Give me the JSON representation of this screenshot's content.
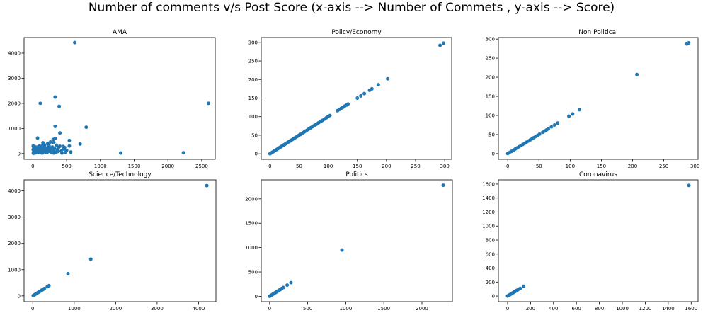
{
  "suptitle": "Number of comments v/s Post Score (x-axis --> Number of Commets , y-axis --> Score)",
  "colors": {
    "point": "#1f77b4",
    "axis": "#000000"
  },
  "chart_data": [
    {
      "type": "scatter",
      "title": "AMA",
      "xlim": [
        -130,
        2700
      ],
      "ylim": [
        -230,
        4620
      ],
      "xticks": [
        0,
        500,
        1000,
        1500,
        2000,
        2500
      ],
      "yticks": [
        0,
        1000,
        2000,
        3000,
        4000
      ],
      "points": [
        [
          620,
          4420
        ],
        [
          2600,
          2000
        ],
        [
          330,
          2250
        ],
        [
          110,
          2000
        ],
        [
          390,
          1880
        ],
        [
          330,
          1080
        ],
        [
          790,
          1050
        ],
        [
          400,
          820
        ],
        [
          70,
          620
        ],
        [
          300,
          560
        ],
        [
          330,
          600
        ],
        [
          700,
          380
        ],
        [
          540,
          300
        ],
        [
          540,
          520
        ],
        [
          450,
          280
        ],
        [
          220,
          400
        ],
        [
          260,
          460
        ],
        [
          310,
          440
        ],
        [
          160,
          320
        ],
        [
          150,
          430
        ],
        [
          1300,
          20
        ],
        [
          2230,
          30
        ],
        [
          560,
          60
        ],
        [
          10,
          10
        ],
        [
          20,
          50
        ],
        [
          30,
          100
        ],
        [
          40,
          150
        ],
        [
          50,
          200
        ],
        [
          60,
          250
        ],
        [
          25,
          280
        ],
        [
          15,
          230
        ],
        [
          35,
          80
        ],
        [
          45,
          30
        ],
        [
          55,
          180
        ],
        [
          65,
          90
        ],
        [
          75,
          260
        ],
        [
          80,
          40
        ],
        [
          90,
          150
        ],
        [
          100,
          210
        ],
        [
          110,
          60
        ],
        [
          120,
          280
        ],
        [
          130,
          120
        ],
        [
          140,
          20
        ],
        [
          160,
          180
        ],
        [
          170,
          90
        ],
        [
          180,
          250
        ],
        [
          200,
          130
        ],
        [
          210,
          40
        ],
        [
          230,
          220
        ],
        [
          250,
          90
        ],
        [
          270,
          160
        ],
        [
          280,
          30
        ],
        [
          300,
          110
        ],
        [
          320,
          210
        ],
        [
          340,
          60
        ],
        [
          360,
          150
        ],
        [
          380,
          240
        ],
        [
          420,
          100
        ],
        [
          460,
          180
        ],
        [
          480,
          50
        ],
        [
          500,
          130
        ],
        [
          5,
          300
        ],
        [
          5,
          160
        ],
        [
          8,
          20
        ],
        [
          12,
          120
        ],
        [
          18,
          190
        ],
        [
          28,
          20
        ],
        [
          38,
          240
        ],
        [
          48,
          120
        ],
        [
          58,
          60
        ],
        [
          68,
          190
        ],
        [
          85,
          110
        ],
        [
          95,
          300
        ],
        [
          105,
          150
        ],
        [
          115,
          240
        ],
        [
          125,
          30
        ],
        [
          135,
          200
        ],
        [
          145,
          310
        ],
        [
          155,
          80
        ],
        [
          175,
          340
        ],
        [
          190,
          50
        ],
        [
          205,
          170
        ],
        [
          225,
          120
        ],
        [
          240,
          300
        ],
        [
          260,
          220
        ],
        [
          290,
          260
        ],
        [
          310,
          20
        ],
        [
          350,
          330
        ],
        [
          370,
          80
        ],
        [
          400,
          290
        ],
        [
          430,
          20
        ],
        [
          470,
          240
        ]
      ]
    },
    {
      "type": "scatter",
      "title": "Policy/Economy",
      "xlim": [
        -15,
        312
      ],
      "ylim": [
        -15,
        313
      ],
      "xticks": [
        0,
        50,
        100,
        150,
        200,
        250,
        300
      ],
      "yticks": [
        0,
        50,
        100,
        150,
        200,
        250,
        300
      ],
      "points": [
        [
          0,
          0
        ],
        [
          2,
          2
        ],
        [
          4,
          4
        ],
        [
          6,
          6
        ],
        [
          8,
          8
        ],
        [
          10,
          10
        ],
        [
          12,
          12
        ],
        [
          14,
          14
        ],
        [
          16,
          16
        ],
        [
          18,
          18
        ],
        [
          20,
          20
        ],
        [
          22,
          22
        ],
        [
          24,
          24
        ],
        [
          26,
          26
        ],
        [
          28,
          28
        ],
        [
          30,
          30
        ],
        [
          32,
          32
        ],
        [
          34,
          34
        ],
        [
          36,
          36
        ],
        [
          38,
          38
        ],
        [
          40,
          40
        ],
        [
          42,
          42
        ],
        [
          44,
          44
        ],
        [
          46,
          46
        ],
        [
          48,
          48
        ],
        [
          50,
          50
        ],
        [
          52,
          52
        ],
        [
          55,
          55
        ],
        [
          58,
          58
        ],
        [
          60,
          60
        ],
        [
          63,
          63
        ],
        [
          66,
          66
        ],
        [
          68,
          68
        ],
        [
          70,
          70
        ],
        [
          73,
          73
        ],
        [
          76,
          76
        ],
        [
          78,
          78
        ],
        [
          80,
          80
        ],
        [
          83,
          83
        ],
        [
          86,
          86
        ],
        [
          88,
          88
        ],
        [
          90,
          90
        ],
        [
          93,
          93
        ],
        [
          96,
          96
        ],
        [
          98,
          98
        ],
        [
          100,
          100
        ],
        [
          103,
          103
        ],
        [
          116,
          116
        ],
        [
          119,
          119
        ],
        [
          122,
          122
        ],
        [
          125,
          125
        ],
        [
          128,
          128
        ],
        [
          131,
          131
        ],
        [
          134,
          134
        ],
        [
          150,
          150
        ],
        [
          156,
          156
        ],
        [
          162,
          162
        ],
        [
          171,
          171
        ],
        [
          175,
          175
        ],
        [
          186,
          186
        ],
        [
          202,
          202
        ],
        [
          292,
          292
        ],
        [
          298,
          298
        ]
      ]
    },
    {
      "type": "scatter",
      "title": "Non Political",
      "xlim": [
        -15,
        305
      ],
      "ylim": [
        -15,
        304
      ],
      "xticks": [
        0,
        50,
        100,
        150,
        200,
        250,
        300
      ],
      "yticks": [
        0,
        50,
        100,
        150,
        200,
        250,
        300
      ],
      "points": [
        [
          0,
          0
        ],
        [
          3,
          3
        ],
        [
          6,
          6
        ],
        [
          9,
          9
        ],
        [
          12,
          12
        ],
        [
          15,
          15
        ],
        [
          18,
          18
        ],
        [
          21,
          21
        ],
        [
          24,
          24
        ],
        [
          27,
          27
        ],
        [
          30,
          30
        ],
        [
          33,
          33
        ],
        [
          36,
          36
        ],
        [
          39,
          39
        ],
        [
          42,
          42
        ],
        [
          45,
          45
        ],
        [
          48,
          48
        ],
        [
          51,
          51
        ],
        [
          56,
          56
        ],
        [
          59,
          59
        ],
        [
          62,
          62
        ],
        [
          65,
          65
        ],
        [
          70,
          70
        ],
        [
          75,
          75
        ],
        [
          80,
          80
        ],
        [
          98,
          98
        ],
        [
          104,
          104
        ],
        [
          115,
          115
        ],
        [
          207,
          207
        ],
        [
          287,
          287
        ],
        [
          290,
          290
        ]
      ]
    },
    {
      "type": "scatter",
      "title": "Science/Technology",
      "xlim": [
        -210,
        4420
      ],
      "ylim": [
        -220,
        4420
      ],
      "xticks": [
        0,
        1000,
        2000,
        3000,
        4000
      ],
      "yticks": [
        0,
        1000,
        2000,
        3000,
        4000
      ],
      "points": [
        [
          10,
          10
        ],
        [
          30,
          30
        ],
        [
          50,
          50
        ],
        [
          70,
          70
        ],
        [
          90,
          90
        ],
        [
          110,
          110
        ],
        [
          130,
          130
        ],
        [
          150,
          150
        ],
        [
          170,
          170
        ],
        [
          190,
          190
        ],
        [
          210,
          210
        ],
        [
          230,
          230
        ],
        [
          250,
          250
        ],
        [
          280,
          280
        ],
        [
          350,
          350
        ],
        [
          390,
          390
        ],
        [
          850,
          850
        ],
        [
          1400,
          1400
        ],
        [
          4200,
          4200
        ]
      ]
    },
    {
      "type": "scatter",
      "title": "Politics",
      "xlim": [
        -110,
        2400
      ],
      "ylim": [
        -110,
        2390
      ],
      "xticks": [
        0,
        500,
        1000,
        1500,
        2000
      ],
      "yticks": [
        0,
        500,
        1000,
        1500,
        2000
      ],
      "points": [
        [
          0,
          0
        ],
        [
          10,
          10
        ],
        [
          20,
          20
        ],
        [
          30,
          30
        ],
        [
          40,
          40
        ],
        [
          50,
          50
        ],
        [
          60,
          60
        ],
        [
          70,
          70
        ],
        [
          80,
          80
        ],
        [
          90,
          90
        ],
        [
          100,
          100
        ],
        [
          110,
          110
        ],
        [
          120,
          120
        ],
        [
          130,
          130
        ],
        [
          140,
          140
        ],
        [
          150,
          150
        ],
        [
          160,
          160
        ],
        [
          180,
          180
        ],
        [
          230,
          230
        ],
        [
          280,
          280
        ],
        [
          950,
          950
        ],
        [
          2280,
          2280
        ]
      ]
    },
    {
      "type": "scatter",
      "title": "Coronavirus",
      "xlim": [
        -80,
        1660
      ],
      "ylim": [
        -80,
        1660
      ],
      "xticks": [
        0,
        200,
        400,
        600,
        800,
        1000,
        1200,
        1400,
        1600
      ],
      "yticks": [
        0,
        200,
        400,
        600,
        800,
        1000,
        1200,
        1400,
        1600
      ],
      "points": [
        [
          0,
          0
        ],
        [
          5,
          5
        ],
        [
          10,
          10
        ],
        [
          15,
          15
        ],
        [
          20,
          20
        ],
        [
          25,
          25
        ],
        [
          30,
          30
        ],
        [
          35,
          35
        ],
        [
          40,
          40
        ],
        [
          45,
          45
        ],
        [
          50,
          50
        ],
        [
          55,
          55
        ],
        [
          60,
          60
        ],
        [
          65,
          65
        ],
        [
          70,
          70
        ],
        [
          75,
          75
        ],
        [
          80,
          80
        ],
        [
          90,
          90
        ],
        [
          110,
          110
        ],
        [
          140,
          140
        ],
        [
          1580,
          1580
        ]
      ]
    }
  ]
}
